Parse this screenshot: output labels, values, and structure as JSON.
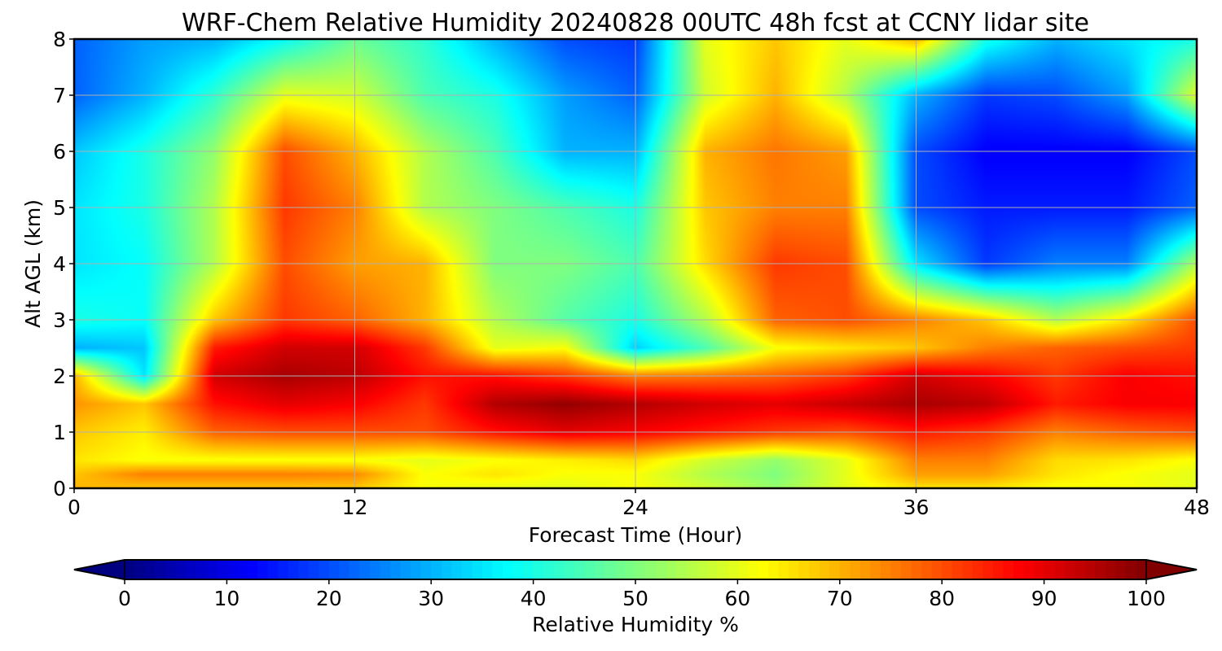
{
  "chart_data": {
    "type": "heatmap",
    "title": "WRF-Chem Relative Humidity 20240828 00UTC 48h fcst at CCNY lidar site",
    "xlabel": "Forecast Time (Hour)",
    "ylabel": "Alt AGL (km)",
    "xlim": [
      0,
      48
    ],
    "ylim": [
      0,
      8
    ],
    "x_ticks": [
      "0",
      "12",
      "24",
      "36",
      "48"
    ],
    "y_ticks": [
      "0",
      "1",
      "2",
      "3",
      "4",
      "5",
      "6",
      "7",
      "8"
    ],
    "grid": true,
    "colormap": "jet",
    "colorbar": {
      "label": "Relative Humidity %",
      "orientation": "horizontal",
      "placement": "bottom",
      "extend": "both",
      "range": [
        0,
        100
      ],
      "ticks": [
        "0",
        "10",
        "20",
        "30",
        "40",
        "50",
        "60",
        "70",
        "80",
        "90",
        "100"
      ]
    },
    "x": [
      0,
      3,
      6,
      9,
      12,
      15,
      18,
      21,
      24,
      27,
      30,
      33,
      36,
      39,
      42,
      45,
      48
    ],
    "y": [
      0,
      0.25,
      0.5,
      1,
      1.5,
      2,
      2.5,
      3,
      4,
      5,
      6,
      7,
      8
    ],
    "z": [
      [
        70,
        68,
        68,
        68,
        68,
        62,
        60,
        60,
        62,
        58,
        52,
        60,
        65,
        65,
        62,
        62,
        60
      ],
      [
        68,
        75,
        75,
        75,
        74,
        62,
        65,
        62,
        62,
        55,
        50,
        60,
        72,
        72,
        65,
        62,
        60
      ],
      [
        65,
        62,
        62,
        62,
        62,
        60,
        62,
        64,
        66,
        58,
        52,
        60,
        75,
        75,
        66,
        65,
        62
      ],
      [
        68,
        64,
        78,
        80,
        80,
        80,
        86,
        90,
        88,
        85,
        82,
        80,
        85,
        82,
        75,
        78,
        80
      ],
      [
        73,
        68,
        86,
        90,
        88,
        82,
        95,
        98,
        95,
        92,
        90,
        93,
        96,
        94,
        85,
        88,
        88
      ],
      [
        70,
        35,
        92,
        96,
        94,
        86,
        86,
        82,
        75,
        76,
        78,
        82,
        92,
        88,
        82,
        88,
        86
      ],
      [
        30,
        32,
        85,
        92,
        92,
        82,
        60,
        62,
        33,
        45,
        62,
        65,
        68,
        75,
        78,
        80,
        82
      ],
      [
        40,
        38,
        68,
        82,
        78,
        70,
        55,
        46,
        40,
        55,
        78,
        80,
        75,
        68,
        55,
        65,
        80
      ],
      [
        35,
        38,
        55,
        80,
        72,
        70,
        50,
        50,
        45,
        66,
        82,
        80,
        35,
        18,
        25,
        25,
        55
      ],
      [
        35,
        40,
        55,
        82,
        75,
        55,
        50,
        45,
        40,
        68,
        75,
        75,
        20,
        15,
        15,
        15,
        22
      ],
      [
        32,
        40,
        52,
        80,
        70,
        55,
        45,
        30,
        30,
        70,
        76,
        72,
        20,
        12,
        12,
        12,
        20
      ],
      [
        22,
        30,
        42,
        60,
        58,
        45,
        40,
        28,
        22,
        58,
        70,
        55,
        30,
        18,
        20,
        28,
        60
      ],
      [
        22,
        28,
        30,
        38,
        48,
        42,
        30,
        20,
        18,
        60,
        68,
        60,
        70,
        40,
        30,
        35,
        40
      ]
    ]
  }
}
